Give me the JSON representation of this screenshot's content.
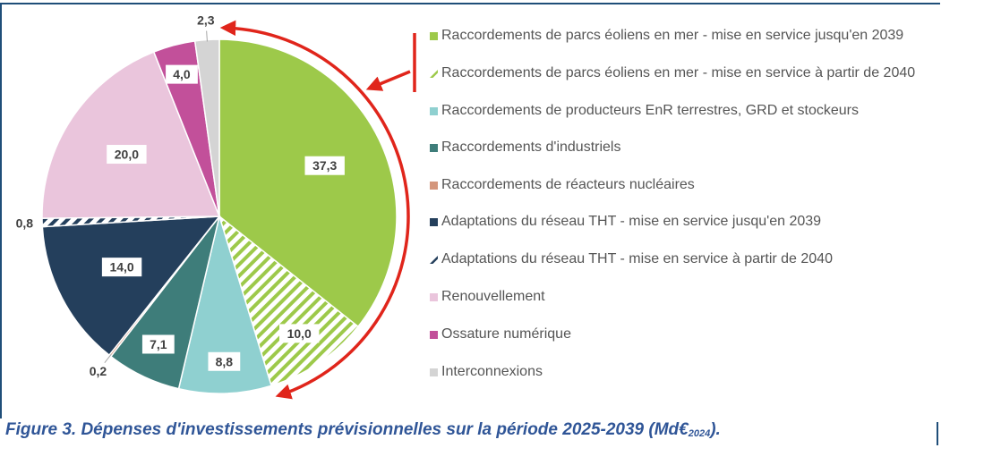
{
  "chart_data": {
    "type": "pie",
    "title": "",
    "units": "Md€2024",
    "slices": [
      {
        "label": "Raccordements de parcs éoliens en mer - mise en service jusqu'en 2039",
        "value": 37.3,
        "display": "37,3",
        "color": "#9dc94a",
        "pattern": "solid"
      },
      {
        "label": "Raccordements de parcs éoliens en mer - mise en service à partir de 2040",
        "value": 10.0,
        "display": "10,0",
        "color": "#9dc94a",
        "pattern": "hatched"
      },
      {
        "label": "Raccordements de producteurs EnR terrestres, GRD et stockeurs",
        "value": 8.8,
        "display": "8,8",
        "color": "#8fd0d0",
        "pattern": "solid"
      },
      {
        "label": "Raccordements d'industriels",
        "value": 7.1,
        "display": "7,1",
        "color": "#3e7d7a",
        "pattern": "solid"
      },
      {
        "label": "Raccordements de réacteurs nucléaires",
        "value": 0.2,
        "display": "0,2",
        "color": "#d4967c",
        "pattern": "solid"
      },
      {
        "label": "Adaptations du réseau THT - mise en service jusqu'en 2039",
        "value": 14.0,
        "display": "14,0",
        "color": "#243f5c",
        "pattern": "solid"
      },
      {
        "label": "Adaptations du réseau THT - mise en service à partir de 2040",
        "value": 0.8,
        "display": "0,8",
        "color": "#243f5c",
        "pattern": "hatched"
      },
      {
        "label": "Renouvellement",
        "value": 20.0,
        "display": "20,0",
        "color": "#eac5dc",
        "pattern": "solid"
      },
      {
        "label": "Ossature numérique",
        "value": 4.0,
        "display": "4,0",
        "color": "#c2509a",
        "pattern": "solid"
      },
      {
        "label": "Interconnexions",
        "value": 2.3,
        "display": "2,3",
        "color": "#d4d4d4",
        "pattern": "solid"
      }
    ],
    "legend_position": "right"
  },
  "legend": [
    {
      "text": "Raccordements de parcs éoliens en mer - mise en service jusqu'en 2039",
      "color": "#9dc94a",
      "pattern": "solid"
    },
    {
      "text": "Raccordements de parcs éoliens en mer - mise en service à partir de 2040",
      "color": "#9dc94a",
      "pattern": "hatched"
    },
    {
      "text": "Raccordements de producteurs EnR terrestres, GRD et stockeurs",
      "color": "#8fd0d0",
      "pattern": "solid"
    },
    {
      "text": "Raccordements d'industriels",
      "color": "#3e7d7a",
      "pattern": "solid"
    },
    {
      "text": "Raccordements de réacteurs nucléaires",
      "color": "#d4967c",
      "pattern": "solid"
    },
    {
      "text": "Adaptations du réseau THT - mise en service jusqu'en 2039",
      "color": "#243f5c",
      "pattern": "solid"
    },
    {
      "text": "Adaptations du réseau THT - mise en service à partir de 2040",
      "color": "#243f5c",
      "pattern": "hatched"
    },
    {
      "text": "Renouvellement",
      "color": "#eac5dc",
      "pattern": "solid"
    },
    {
      "text": "Ossature numérique",
      "color": "#c2509a",
      "pattern": "solid"
    },
    {
      "text": "Interconnexions",
      "color": "#d4d4d4",
      "pattern": "solid"
    }
  ],
  "caption": {
    "main": "Figure 3. Dépenses d'investissements prévisionnelles sur la période 2025-2039 (Md€",
    "sub": "2024",
    "end": ")."
  },
  "annotation_color": "#e0251b",
  "frame_color": "#1f4e79"
}
